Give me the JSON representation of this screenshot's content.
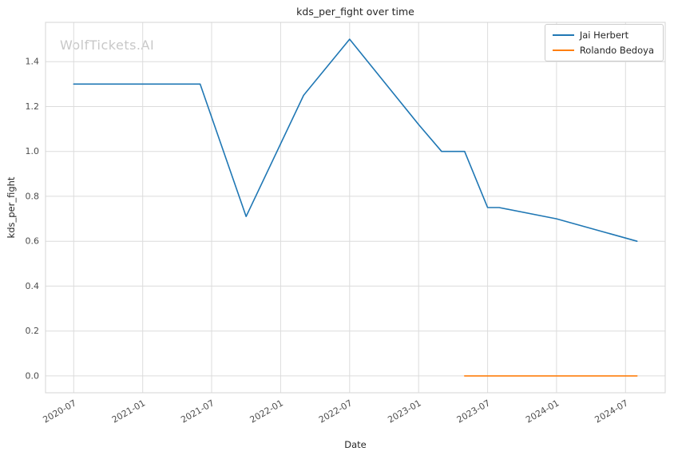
{
  "chart_data": {
    "type": "line",
    "title": "kds_per_fight over time",
    "xlabel": "Date",
    "ylabel": "kds_per_fight",
    "watermark": "WolfTickets.AI",
    "grid": true,
    "legend_position": "upper right",
    "x_ticks": [
      "2020-07",
      "2021-01",
      "2021-07",
      "2022-01",
      "2022-07",
      "2023-01",
      "2023-07",
      "2024-01",
      "2024-07"
    ],
    "y_ticks": [
      "0.0",
      "0.2",
      "0.4",
      "0.6",
      "0.8",
      "1.0",
      "1.2",
      "1.4"
    ],
    "ylim": [
      -0.075,
      1.575
    ],
    "x_range": [
      "2020-07",
      "2024-08"
    ],
    "colors": {
      "grid": "#dcdcdc",
      "frame": "#d5d5d5",
      "tick_text": "#4d4d4d",
      "title_text": "#262626",
      "watermark": "#c8c8c8"
    },
    "series": [
      {
        "name": "Jai Herbert",
        "color": "#1f77b4",
        "points": [
          [
            "2020-07",
            1.3
          ],
          [
            "2021-06",
            1.3
          ],
          [
            "2021-10",
            0.71
          ],
          [
            "2022-03",
            1.25
          ],
          [
            "2022-07",
            1.5
          ],
          [
            "2023-01",
            1.12
          ],
          [
            "2023-03",
            1.0
          ],
          [
            "2023-05",
            1.0
          ],
          [
            "2023-07",
            0.75
          ],
          [
            "2023-08",
            0.75
          ],
          [
            "2024-01",
            0.7
          ],
          [
            "2024-08",
            0.6
          ]
        ]
      },
      {
        "name": "Rolando Bedoya",
        "color": "#ff7f0e",
        "points": [
          [
            "2023-05",
            0.0
          ],
          [
            "2024-08",
            0.0
          ]
        ]
      }
    ]
  }
}
